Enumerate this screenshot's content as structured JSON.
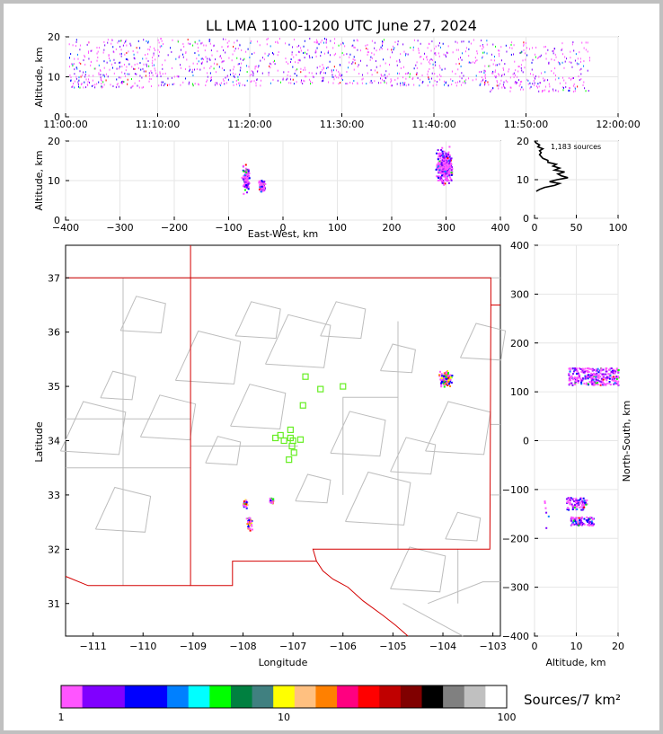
{
  "title": "LL LMA 1100-1200 UTC June 27, 2024",
  "chart_data": [
    {
      "id": "time_altitude",
      "type": "scatter",
      "xlabel": "",
      "ylabel": "Altitude, km",
      "x_ticks": [
        "11:00:00",
        "11:10:00",
        "11:20:00",
        "11:30:00",
        "11:40:00",
        "11:50:00",
        "12:00:00"
      ],
      "xlim_minutes": [
        0,
        60
      ],
      "ylim": [
        0,
        20
      ],
      "y_ticks": [
        0,
        10,
        20
      ],
      "grid": true,
      "clusters": [
        {
          "t_min": 0.3,
          "t_max": 9.5,
          "alt_min": 7.5,
          "alt_max": 19.5
        },
        {
          "t_min": 9.5,
          "t_max": 21.5,
          "alt_min": 8,
          "alt_max": 19.8
        },
        {
          "t_min": 21.5,
          "t_max": 34,
          "alt_min": 8.5,
          "alt_max": 19.8
        },
        {
          "t_min": 34,
          "t_max": 46,
          "alt_min": 8,
          "alt_max": 19.5
        },
        {
          "t_min": 46,
          "t_max": 57,
          "alt_min": 6.5,
          "alt_max": 19
        }
      ]
    },
    {
      "id": "ew_altitude",
      "type": "scatter",
      "xlabel": "East-West, km",
      "ylabel": "Altitude, km",
      "xlim": [
        -400,
        400
      ],
      "x_ticks": [
        -400,
        -300,
        -200,
        -100,
        0,
        100,
        200,
        300,
        400
      ],
      "ylim": [
        0,
        20
      ],
      "y_ticks": [
        0,
        10,
        20
      ],
      "grid": true,
      "clusters": [
        {
          "x_min": -77,
          "x_max": -62,
          "alt_min": 6,
          "alt_max": 15.5
        },
        {
          "x_min": -46,
          "x_max": -34,
          "alt_min": 7,
          "alt_max": 10.5
        },
        {
          "x_min": 278,
          "x_max": 312,
          "alt_min": 8,
          "alt_max": 19.8
        }
      ]
    },
    {
      "id": "altitude_histogram",
      "type": "line",
      "annotation": "1,183 sources",
      "xlim": [
        0,
        100
      ],
      "x_ticks": [
        0,
        50,
        100
      ],
      "ylim": [
        0,
        20
      ],
      "y_ticks": [
        0,
        10,
        20
      ],
      "grid": true,
      "altitude_km": [
        7,
        7.5,
        8,
        8.5,
        9,
        9.5,
        10,
        10.5,
        11,
        11.5,
        12,
        12.5,
        13,
        13.5,
        14,
        14.5,
        15,
        15.5,
        16,
        16.5,
        17,
        17.5,
        18,
        18.5,
        19,
        19.5,
        20
      ],
      "count": [
        2,
        6,
        12,
        24,
        30,
        18,
        27,
        40,
        32,
        28,
        36,
        24,
        30,
        22,
        26,
        16,
        16,
        10,
        8,
        6,
        8,
        6,
        10,
        4,
        6,
        2,
        0
      ]
    },
    {
      "id": "plan_view",
      "type": "scatter",
      "xlabel": "Longitude",
      "ylabel": "Latitude",
      "xlim": [
        -111.55,
        -102.85
      ],
      "ylim": [
        30.4,
        37.6
      ],
      "x_ticks": [
        -111,
        -110,
        -109,
        -108,
        -107,
        -106,
        -105,
        -104,
        -103
      ],
      "y_ticks": [
        31,
        32,
        33,
        34,
        35,
        36,
        37
      ],
      "grid": false,
      "stations": [
        {
          "lon": -107.35,
          "lat": 34.05
        },
        {
          "lon": -107.25,
          "lat": 34.1
        },
        {
          "lon": -107.18,
          "lat": 34.0
        },
        {
          "lon": -107.05,
          "lat": 34.2
        },
        {
          "lon": -107.05,
          "lat": 34.05
        },
        {
          "lon": -107.0,
          "lat": 34.0
        },
        {
          "lon": -106.85,
          "lat": 34.02
        },
        {
          "lon": -107.02,
          "lat": 33.9
        },
        {
          "lon": -106.98,
          "lat": 33.78
        },
        {
          "lon": -107.08,
          "lat": 33.65
        },
        {
          "lon": -106.8,
          "lat": 34.65
        },
        {
          "lon": -106.75,
          "lat": 35.18
        },
        {
          "lon": -106.45,
          "lat": 34.95
        },
        {
          "lon": -106.0,
          "lat": 35.0
        }
      ],
      "clusters": [
        {
          "lon_min": -104.1,
          "lon_max": -103.82,
          "lat_min": 35.0,
          "lat_max": 35.3
        },
        {
          "lon_min": -108.02,
          "lon_max": -107.92,
          "lat_min": 32.75,
          "lat_max": 32.95
        },
        {
          "lon_min": -107.95,
          "lon_max": -107.82,
          "lat_min": 32.35,
          "lat_max": 32.65
        },
        {
          "lon_min": -107.48,
          "lon_max": -107.4,
          "lat_min": 32.85,
          "lat_max": 32.97
        }
      ]
    },
    {
      "id": "altitude_ns",
      "type": "scatter",
      "xlabel": "Altitude, km",
      "ylabel": "North-South, km",
      "xlim": [
        0,
        20
      ],
      "x_ticks": [
        0,
        10,
        20
      ],
      "ylim": [
        -400,
        400
      ],
      "y_ticks": [
        -400,
        -300,
        -200,
        -100,
        0,
        100,
        200,
        300,
        400
      ],
      "grid": true,
      "clusters": [
        {
          "alt_min": 8,
          "alt_max": 20,
          "ns_min": 115,
          "ns_max": 150
        },
        {
          "alt_min": 7.5,
          "alt_max": 12.5,
          "ns_min": -140,
          "ns_max": -115
        },
        {
          "alt_min": 8.5,
          "alt_max": 14,
          "ns_min": -172,
          "ns_max": -155
        },
        {
          "alt_min": 1.5,
          "alt_max": 4,
          "ns_min": -180,
          "ns_max": -120
        }
      ]
    }
  ],
  "colorbar": {
    "label": "Sources/7 km²",
    "scale": "log",
    "ticks": [
      "1",
      "10",
      "100"
    ],
    "colors": [
      "#ff55ff",
      "#8000ff",
      "#8000ff",
      "#0000ff",
      "#0000ff",
      "#0080ff",
      "#00ffff",
      "#00ff00",
      "#008040",
      "#408080",
      "#ffff00",
      "#ffc080",
      "#ff8000",
      "#ff0080",
      "#ff0000",
      "#c00000",
      "#800000",
      "#000000",
      "#808080",
      "#c0c0c0",
      "#ffffff"
    ]
  }
}
